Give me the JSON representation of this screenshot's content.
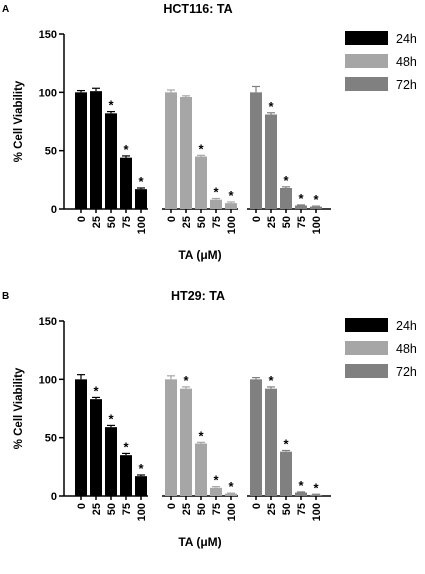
{
  "chart_data": [
    {
      "type": "bar",
      "panel_label": "A",
      "title": "HCT116: TA",
      "xlabel": "TA (μM)",
      "ylabel": "% Cell Viability",
      "ylim": [
        0,
        150
      ],
      "yticks": [
        "0",
        "50",
        "100",
        "150"
      ],
      "categories": [
        "0",
        "25",
        "50",
        "75",
        "100"
      ],
      "legend_position": "right",
      "series": [
        {
          "name": "24h",
          "color": "#000000",
          "values": [
            100,
            101,
            82,
            44,
            17
          ],
          "errors": [
            1.5,
            2.5,
            1.5,
            1.5,
            1
          ],
          "significant": [
            false,
            false,
            true,
            true,
            true
          ]
        },
        {
          "name": "48h",
          "color": "#a6a6a6",
          "values": [
            100,
            96,
            45,
            8,
            5
          ],
          "errors": [
            2,
            1,
            1,
            1,
            1
          ],
          "significant": [
            false,
            false,
            true,
            true,
            true
          ]
        },
        {
          "name": "72h",
          "color": "#808080",
          "values": [
            100,
            81,
            18,
            3,
            2
          ],
          "errors": [
            5,
            1.5,
            1,
            0.5,
            0.5
          ],
          "significant": [
            false,
            true,
            true,
            true,
            true
          ]
        }
      ],
      "annotation_mark": "*"
    },
    {
      "type": "bar",
      "panel_label": "B",
      "title": "HT29: TA",
      "xlabel": "TA (μM)",
      "ylabel": "% Cell Viability",
      "ylim": [
        0,
        150
      ],
      "yticks": [
        "0",
        "50",
        "100",
        "150"
      ],
      "categories": [
        "0",
        "25",
        "50",
        "75",
        "100"
      ],
      "legend_position": "right",
      "series": [
        {
          "name": "24h",
          "color": "#000000",
          "values": [
            100,
            83,
            59,
            35,
            17
          ],
          "errors": [
            4,
            1.5,
            1.5,
            1.5,
            1
          ],
          "significant": [
            false,
            true,
            true,
            true,
            true
          ]
        },
        {
          "name": "48h",
          "color": "#a6a6a6",
          "values": [
            100,
            92,
            45,
            7,
            2
          ],
          "errors": [
            3,
            1.5,
            1,
            1,
            0.5
          ],
          "significant": [
            false,
            true,
            true,
            true,
            true
          ]
        },
        {
          "name": "72h",
          "color": "#808080",
          "values": [
            100,
            92,
            38,
            3,
            1
          ],
          "errors": [
            1.5,
            1.5,
            1,
            0.5,
            0.5
          ],
          "significant": [
            false,
            true,
            true,
            true,
            true
          ]
        }
      ],
      "annotation_mark": "*"
    }
  ]
}
